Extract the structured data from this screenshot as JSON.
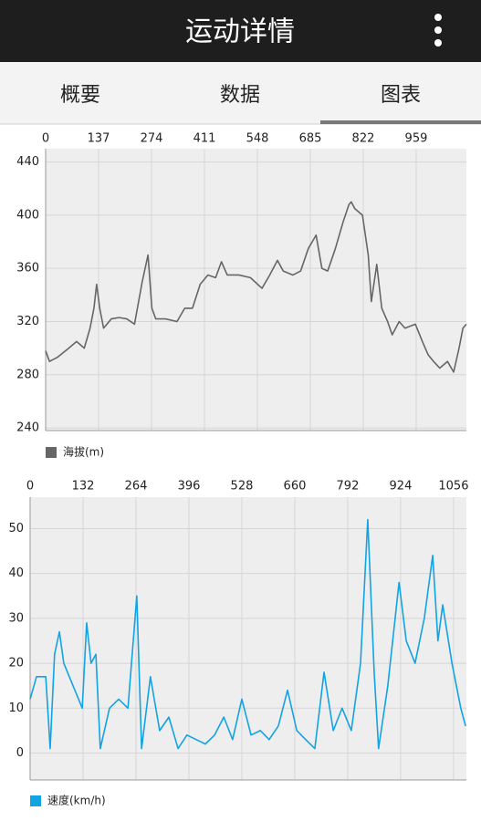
{
  "header": {
    "title": "运动详情"
  },
  "tabs": [
    "概要",
    "数据",
    "图表"
  ],
  "chart_data": [
    {
      "type": "line",
      "legend": "bottom-left",
      "grid": true,
      "x": [
        0,
        10,
        30,
        60,
        80,
        100,
        115,
        125,
        132,
        140,
        150,
        170,
        190,
        210,
        230,
        250,
        265,
        275,
        285,
        310,
        340,
        360,
        380,
        400,
        420,
        440,
        455,
        470,
        500,
        530,
        560,
        580,
        600,
        615,
        640,
        660,
        680,
        700,
        715,
        730,
        750,
        770,
        785,
        791,
        800,
        820,
        835,
        843,
        857,
        870,
        885,
        897,
        915,
        930,
        957,
        975,
        990,
        1004,
        1020,
        1040,
        1056,
        1070,
        1080,
        1089
      ],
      "series": [
        {
          "name": "海拔(m)",
          "color": "#666666",
          "values": [
            298,
            290,
            293,
            300,
            305,
            300,
            315,
            330,
            348,
            330,
            315,
            322,
            323,
            322,
            318,
            350,
            370,
            330,
            322,
            322,
            320,
            330,
            330,
            348,
            355,
            353,
            365,
            355,
            355,
            353,
            345,
            355,
            366,
            358,
            355,
            358,
            375,
            385,
            360,
            358,
            375,
            395,
            408,
            410,
            405,
            400,
            370,
            335,
            363,
            330,
            320,
            310,
            320,
            315,
            318,
            305,
            295,
            290,
            285,
            290,
            282,
            300,
            315,
            318
          ]
        }
      ],
      "xlim": [
        0,
        1089
      ],
      "xticks": [
        0,
        137,
        274,
        411,
        548,
        685,
        822,
        959
      ],
      "ylim": [
        238,
        450
      ],
      "yticks": [
        240,
        280,
        320,
        360,
        400,
        440
      ]
    },
    {
      "type": "line",
      "legend": "bottom-left",
      "grid": true,
      "x": [
        0,
        16,
        39,
        50,
        61,
        73,
        84,
        107,
        130,
        141,
        152,
        164,
        175,
        198,
        221,
        244,
        266,
        278,
        300,
        323,
        346,
        369,
        391,
        414,
        437,
        460,
        483,
        505,
        528,
        551,
        574,
        596,
        619,
        642,
        665,
        687,
        710,
        733,
        756,
        778,
        801,
        824,
        842,
        858,
        869,
        892,
        920,
        938,
        960,
        983,
        1004,
        1017,
        1029,
        1052,
        1074,
        1086
      ],
      "series": [
        {
          "name": "速度(km/h)",
          "color": "#12a3e3",
          "values": [
            12,
            17,
            17,
            1,
            22,
            27,
            20,
            15,
            10,
            29,
            20,
            22,
            1,
            10,
            12,
            10,
            35,
            1,
            17,
            5,
            8,
            1,
            4,
            3,
            2,
            4,
            8,
            3,
            12,
            4,
            5,
            3,
            6,
            14,
            5,
            3,
            1,
            18,
            5,
            10,
            5,
            20,
            52,
            18,
            1,
            15,
            38,
            25,
            20,
            30,
            44,
            25,
            33,
            20,
            10,
            6
          ]
        }
      ],
      "xlim": [
        0,
        1088
      ],
      "xticks": [
        0,
        132,
        264,
        396,
        528,
        660,
        792,
        924,
        1056
      ],
      "ylim": [
        -6,
        57
      ],
      "yticks": [
        0,
        10,
        20,
        30,
        40,
        50
      ]
    }
  ]
}
